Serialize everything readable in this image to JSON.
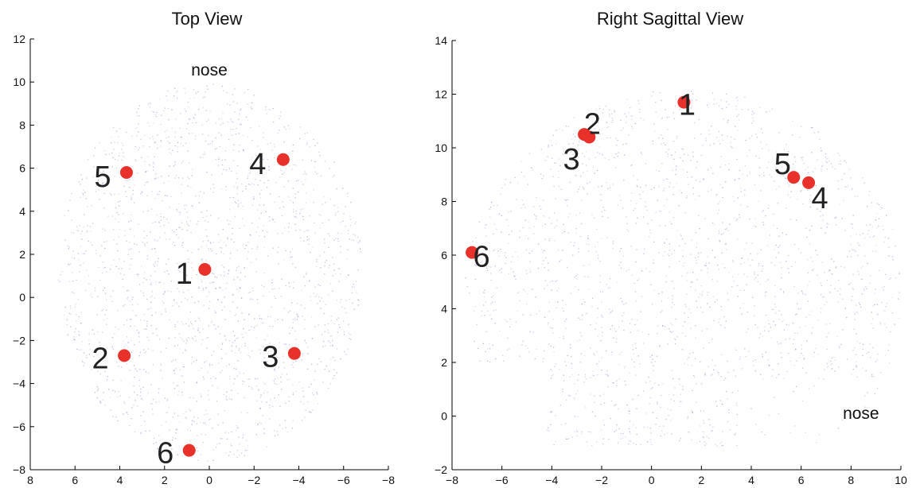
{
  "chart_data": [
    {
      "type": "scatter",
      "title": "Top View",
      "xlim": [
        8,
        -8
      ],
      "ylim": [
        -8,
        12
      ],
      "x_reversed": true,
      "xticks": [
        8,
        6,
        4,
        2,
        0,
        -2,
        -4,
        -6,
        -8
      ],
      "yticks": [
        -8,
        -6,
        -4,
        -2,
        0,
        2,
        4,
        6,
        8,
        10,
        12
      ],
      "annotation": {
        "text": "nose",
        "x": 0,
        "y": 10.3
      },
      "points": [
        {
          "label": "1",
          "x": 0.2,
          "y": 1.3
        },
        {
          "label": "2",
          "x": 3.8,
          "y": -2.7
        },
        {
          "label": "3",
          "x": -3.8,
          "y": -2.6
        },
        {
          "label": "4",
          "x": -3.3,
          "y": 6.4
        },
        {
          "label": "5",
          "x": 3.7,
          "y": 5.8
        },
        {
          "label": "6",
          "x": 0.9,
          "y": -7.1
        }
      ],
      "marker_color": "#e8312a",
      "scalp_color": "#8a86c4"
    },
    {
      "type": "scatter",
      "title": "Right Sagittal View",
      "xlim": [
        -8,
        10
      ],
      "ylim": [
        -2,
        14
      ],
      "xticks": [
        -8,
        -6,
        -4,
        -2,
        0,
        2,
        4,
        6,
        8,
        10
      ],
      "yticks": [
        -2,
        0,
        2,
        4,
        6,
        8,
        10,
        12,
        14
      ],
      "annotation": {
        "text": "nose",
        "x": 8.4,
        "y": -0.1
      },
      "points": [
        {
          "label": "1",
          "x": 1.3,
          "y": 11.7
        },
        {
          "label": "2",
          "x": -2.5,
          "y": 10.4
        },
        {
          "label": "3",
          "x": -2.7,
          "y": 10.5
        },
        {
          "label": "4",
          "x": 6.3,
          "y": 8.7
        },
        {
          "label": "5",
          "x": 5.7,
          "y": 8.9
        },
        {
          "label": "6",
          "x": -7.2,
          "y": 6.1
        }
      ],
      "marker_color": "#e8312a",
      "scalp_color": "#8a86c4"
    }
  ]
}
